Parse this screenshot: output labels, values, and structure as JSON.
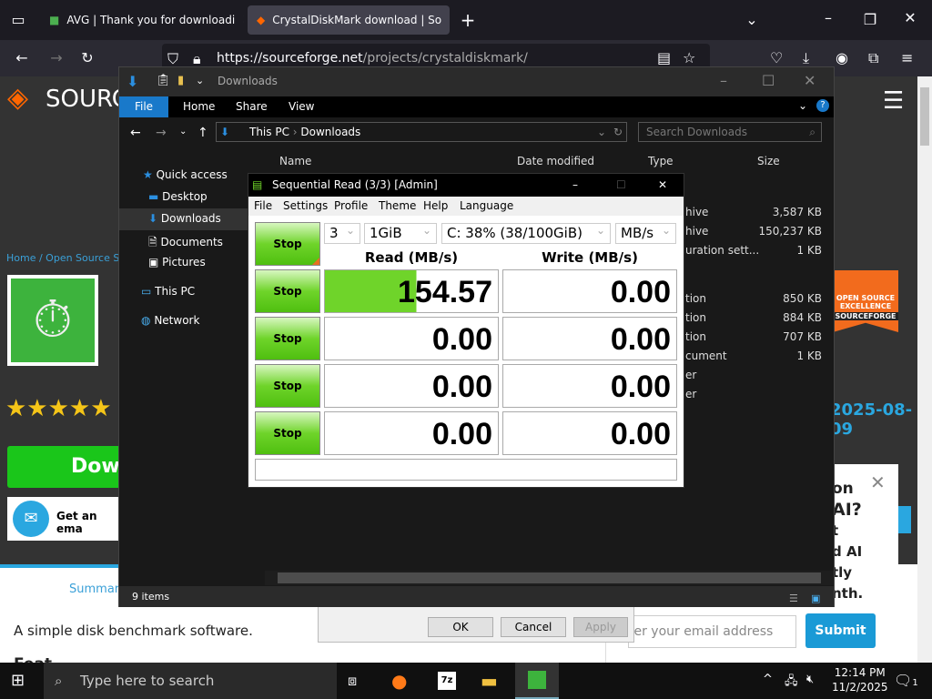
{
  "browser": {
    "tabs": [
      {
        "label": "AVG | Thank you for downloadi",
        "active": false
      },
      {
        "label": "CrystalDiskMark download | So",
        "active": true
      }
    ],
    "url_host": "https://sourceforge.net",
    "url_path": "/projects/crystaldiskmark/"
  },
  "site": {
    "logo_text": "SOURC",
    "breadcrumb": "Home / Open Source So",
    "download_label": "Dow",
    "email_label": "Get an ema",
    "stars": "★★★★★",
    "date": "2025-08-09",
    "badge_line1": "OPEN SOURCE",
    "badge_line2": "EXCELLENCE",
    "badge_line3": "SOURCEFORGE",
    "tab_summary": "Summary",
    "description": "A simple disk benchmark software.",
    "features_heading": "Feat",
    "popup_lines": [
      "on",
      "AI?",
      "t",
      "d AI",
      "tly",
      "nth."
    ],
    "email_placeholder": "ter your email address",
    "submit_label": "Submit"
  },
  "dialog": {
    "ok": "OK",
    "cancel": "Cancel",
    "apply": "Apply"
  },
  "explorer": {
    "title": "Downloads",
    "ribbon_tabs": [
      "File",
      "Home",
      "Share",
      "View"
    ],
    "path": [
      "This PC",
      "Downloads"
    ],
    "search_placeholder": "Search Downloads",
    "nav": [
      "Quick access",
      "Desktop",
      "Downloads",
      "Documents",
      "Pictures",
      "This PC",
      "Network"
    ],
    "columns": [
      "Name",
      "Date modified",
      "Type",
      "Size"
    ],
    "rows": [
      {
        "type": "hive",
        "size": "3,587 KB"
      },
      {
        "type": "hive",
        "size": "150,237 KB"
      },
      {
        "type": "uration sett...",
        "size": "1 KB"
      },
      {
        "type": "tion",
        "size": "850 KB"
      },
      {
        "type": "tion",
        "size": "884 KB"
      },
      {
        "type": "tion",
        "size": "707 KB"
      },
      {
        "type": "cument",
        "size": "1 KB"
      },
      {
        "type": "er",
        "size": ""
      },
      {
        "type": "er",
        "size": ""
      }
    ],
    "status": "9 items"
  },
  "cdm": {
    "title": "Sequential Read (3/3) [Admin]",
    "menu": [
      "File",
      "Settings",
      "Profile",
      "Theme",
      "Help",
      "Language"
    ],
    "count": "3",
    "size": "1GiB",
    "drive": "C: 38% (38/100GiB)",
    "unit": "MB/s",
    "read_header": "Read (MB/s)",
    "write_header": "Write (MB/s)",
    "stop_label": "Stop",
    "results": [
      {
        "read": "154.57",
        "write": "0.00",
        "read_progress": 0.53
      },
      {
        "read": "0.00",
        "write": "0.00"
      },
      {
        "read": "0.00",
        "write": "0.00"
      },
      {
        "read": "0.00",
        "write": "0.00"
      }
    ]
  },
  "taskbar": {
    "search_placeholder": "Type here to search",
    "time": "12:14 PM",
    "date": "11/2/2025",
    "notifications": "1"
  }
}
